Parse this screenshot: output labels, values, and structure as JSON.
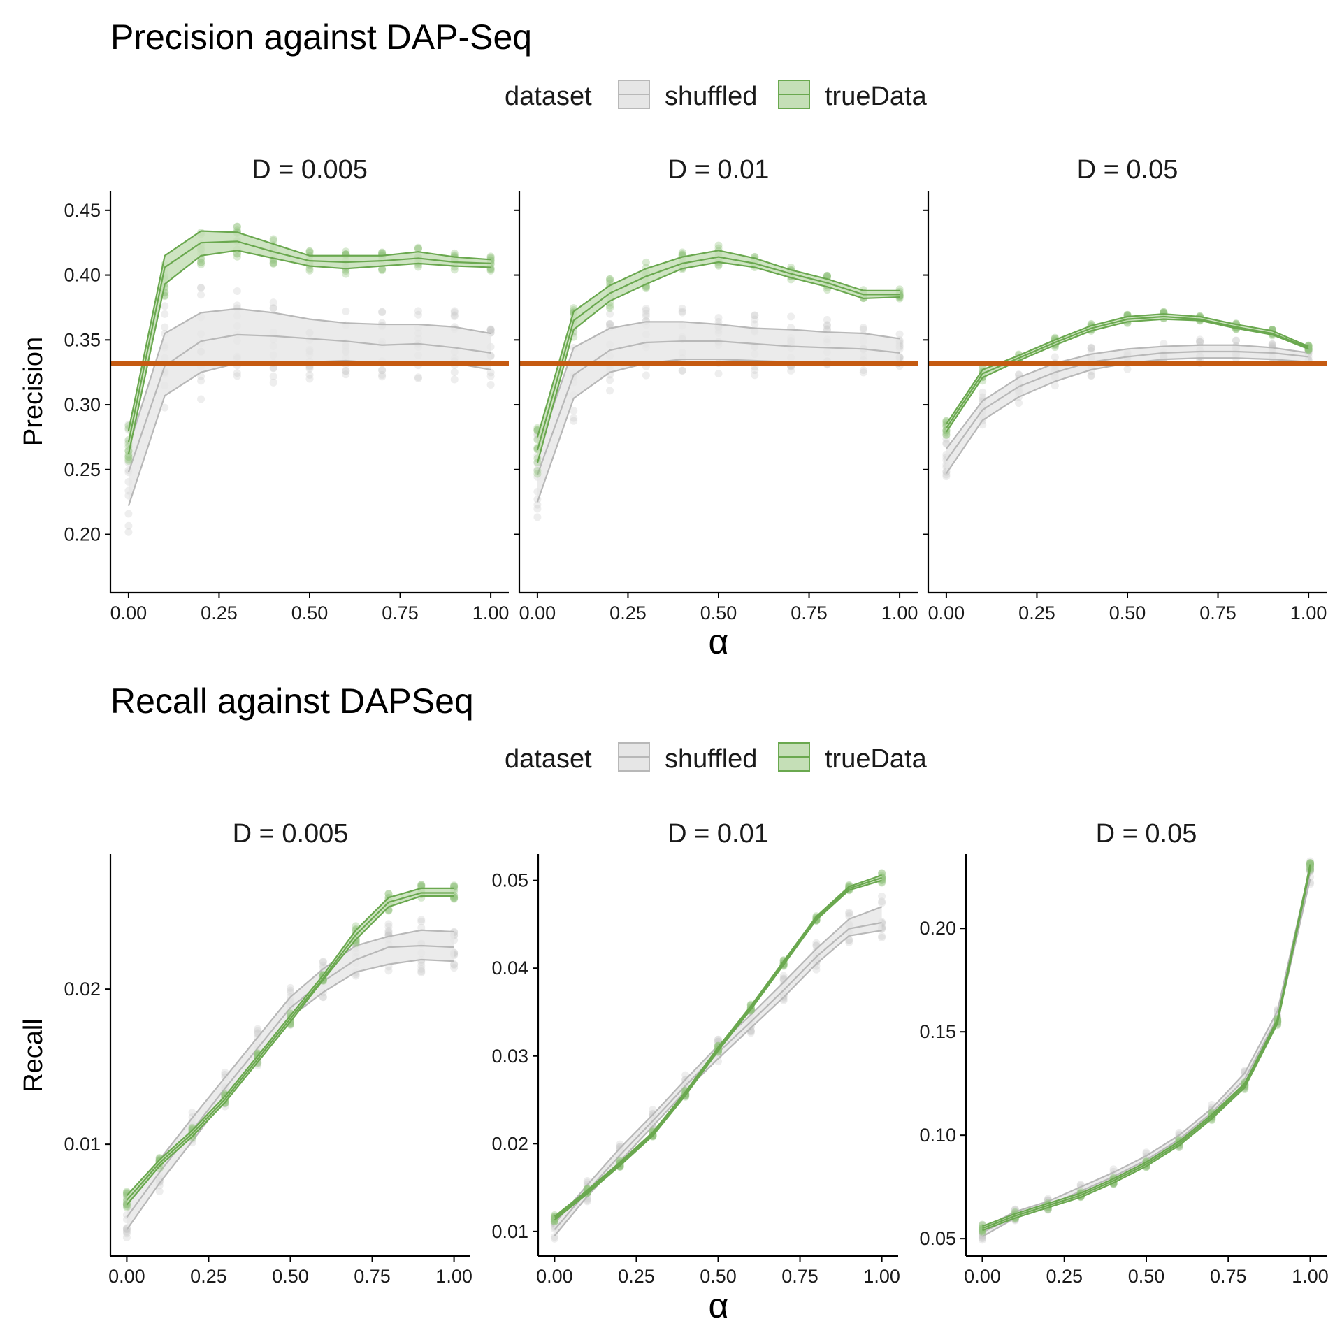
{
  "colors": {
    "shuffled_line": "#b8b8b8",
    "shuffled_fill": "#e6e6e6",
    "shuffled_point": "#c8c8c8",
    "true_line": "#6aa84f",
    "true_fill": "#c5dfb7",
    "true_point": "#93c47d",
    "reference_line": "#c55a11",
    "axis": "#000000"
  },
  "legend_title": "dataset",
  "x_axis_label": "α",
  "chart_data": [
    {
      "type": "line",
      "title": "Precision against DAP-Seq",
      "ylabel": "Precision",
      "xlabel": "α",
      "x": [
        0,
        0.1,
        0.2,
        0.3,
        0.4,
        0.5,
        0.6,
        0.7,
        0.8,
        0.9,
        1.0
      ],
      "xlim": [
        -0.05,
        1.05
      ],
      "ylim": [
        0.155,
        0.465
      ],
      "xticks": [
        "0.00",
        "0.25",
        "0.50",
        "0.75",
        "1.00"
      ],
      "yticks": [
        "0.20",
        "0.25",
        "0.30",
        "0.35",
        "0.40",
        "0.45"
      ],
      "reference_line": 0.332,
      "legend": {
        "title": "dataset",
        "position": "top",
        "entries": [
          "shuffled",
          "trueData"
        ]
      },
      "panels": [
        {
          "label": "D = 0.005",
          "series": [
            {
              "name": "shuffled",
              "values": [
                0.248,
                0.33,
                0.349,
                0.354,
                0.353,
                0.351,
                0.349,
                0.346,
                0.347,
                0.344,
                0.34
              ],
              "lower": [
                0.222,
                0.307,
                0.325,
                0.332,
                0.333,
                0.333,
                0.334,
                0.332,
                0.332,
                0.332,
                0.327
              ],
              "upper": [
                0.267,
                0.355,
                0.371,
                0.374,
                0.371,
                0.366,
                0.363,
                0.362,
                0.362,
                0.36,
                0.355
              ]
            },
            {
              "name": "trueData",
              "values": [
                0.271,
                0.406,
                0.425,
                0.426,
                0.418,
                0.411,
                0.41,
                0.411,
                0.413,
                0.41,
                0.409
              ],
              "lower": [
                0.262,
                0.393,
                0.415,
                0.419,
                0.413,
                0.407,
                0.405,
                0.407,
                0.409,
                0.407,
                0.406
              ],
              "upper": [
                0.28,
                0.415,
                0.434,
                0.433,
                0.424,
                0.415,
                0.415,
                0.415,
                0.418,
                0.414,
                0.412
              ]
            }
          ]
        },
        {
          "label": "D = 0.01",
          "series": [
            {
              "name": "shuffled",
              "values": [
                0.246,
                0.323,
                0.342,
                0.348,
                0.349,
                0.349,
                0.347,
                0.345,
                0.344,
                0.343,
                0.34
              ],
              "lower": [
                0.225,
                0.305,
                0.325,
                0.332,
                0.335,
                0.335,
                0.334,
                0.333,
                0.332,
                0.332,
                0.33
              ],
              "upper": [
                0.264,
                0.344,
                0.359,
                0.364,
                0.364,
                0.362,
                0.359,
                0.358,
                0.356,
                0.355,
                0.351
              ]
            },
            {
              "name": "trueData",
              "values": [
                0.265,
                0.365,
                0.386,
                0.399,
                0.409,
                0.414,
                0.409,
                0.401,
                0.394,
                0.385,
                0.385
              ],
              "lower": [
                0.255,
                0.358,
                0.38,
                0.393,
                0.405,
                0.41,
                0.406,
                0.398,
                0.391,
                0.382,
                0.383
              ],
              "upper": [
                0.275,
                0.372,
                0.392,
                0.405,
                0.414,
                0.419,
                0.413,
                0.404,
                0.397,
                0.388,
                0.388
              ]
            }
          ]
        },
        {
          "label": "D = 0.05",
          "series": [
            {
              "name": "shuffled",
              "values": [
                0.257,
                0.296,
                0.314,
                0.325,
                0.333,
                0.337,
                0.34,
                0.341,
                0.341,
                0.34,
                0.337
              ],
              "lower": [
                0.247,
                0.288,
                0.306,
                0.318,
                0.327,
                0.332,
                0.335,
                0.336,
                0.336,
                0.335,
                0.333
              ],
              "upper": [
                0.266,
                0.303,
                0.321,
                0.332,
                0.339,
                0.343,
                0.345,
                0.346,
                0.346,
                0.344,
                0.34
              ]
            },
            {
              "name": "trueData",
              "values": [
                0.282,
                0.324,
                0.336,
                0.348,
                0.359,
                0.366,
                0.368,
                0.366,
                0.36,
                0.355,
                0.344
              ],
              "lower": [
                0.279,
                0.321,
                0.334,
                0.346,
                0.357,
                0.364,
                0.366,
                0.365,
                0.359,
                0.354,
                0.343
              ],
              "upper": [
                0.285,
                0.327,
                0.338,
                0.35,
                0.361,
                0.368,
                0.37,
                0.368,
                0.362,
                0.357,
                0.345
              ]
            }
          ]
        }
      ]
    },
    {
      "type": "line",
      "title": "Recall against DAPSeq",
      "ylabel": "Recall",
      "xlabel": "α",
      "x": [
        0,
        0.1,
        0.2,
        0.3,
        0.4,
        0.5,
        0.6,
        0.7,
        0.8,
        0.9,
        1.0
      ],
      "xlim": [
        -0.05,
        1.05
      ],
      "xticks": [
        "0.00",
        "0.25",
        "0.50",
        "0.75",
        "1.00"
      ],
      "legend": {
        "title": "dataset",
        "position": "top",
        "entries": [
          "shuffled",
          "trueData"
        ]
      },
      "panels": [
        {
          "label": "D = 0.005",
          "ylim": [
            0.0028,
            0.0287
          ],
          "yticks": [
            "0.01",
            "0.02"
          ],
          "series": [
            {
              "name": "shuffled",
              "values": [
                0.0053,
                0.0082,
                0.0109,
                0.0136,
                0.0162,
                0.0188,
                0.0205,
                0.0219,
                0.0227,
                0.0228,
                0.0227
              ],
              "lower": [
                0.0045,
                0.0075,
                0.0102,
                0.013,
                0.0156,
                0.0182,
                0.0198,
                0.0211,
                0.0216,
                0.0219,
                0.0218
              ],
              "upper": [
                0.0061,
                0.009,
                0.0117,
                0.0143,
                0.0169,
                0.0195,
                0.0213,
                0.0228,
                0.0234,
                0.0238,
                0.0237
              ]
            },
            {
              "name": "trueData",
              "values": [
                0.0064,
                0.0088,
                0.0107,
                0.0129,
                0.0155,
                0.0181,
                0.0207,
                0.0235,
                0.0256,
                0.0262,
                0.0262
              ],
              "lower": [
                0.0061,
                0.0086,
                0.0105,
                0.0127,
                0.0153,
                0.0179,
                0.0206,
                0.0232,
                0.0253,
                0.026,
                0.026
              ],
              "upper": [
                0.0067,
                0.009,
                0.0109,
                0.0131,
                0.0157,
                0.0183,
                0.0209,
                0.0238,
                0.0259,
                0.0265,
                0.0265
              ]
            }
          ]
        },
        {
          "label": "D = 0.01",
          "ylim": [
            0.0072,
            0.053
          ],
          "yticks": [
            "0.01",
            "0.02",
            "0.03",
            "0.04",
            "0.05"
          ],
          "series": [
            {
              "name": "shuffled",
              "values": [
                0.0102,
                0.0146,
                0.0187,
                0.0226,
                0.0266,
                0.0304,
                0.0339,
                0.0375,
                0.0413,
                0.0445,
                0.0452
              ],
              "lower": [
                0.0095,
                0.014,
                0.018,
                0.022,
                0.026,
                0.0297,
                0.0332,
                0.0367,
                0.0405,
                0.0437,
                0.0443
              ],
              "upper": [
                0.0109,
                0.0153,
                0.0195,
                0.0233,
                0.0273,
                0.0312,
                0.0347,
                0.0384,
                0.0422,
                0.0456,
                0.047
              ]
            },
            {
              "name": "trueData",
              "values": [
                0.0115,
                0.0145,
                0.0177,
                0.0211,
                0.0257,
                0.0308,
                0.0355,
                0.0406,
                0.0457,
                0.0491,
                0.0503
              ],
              "lower": [
                0.0113,
                0.0143,
                0.0175,
                0.0209,
                0.0255,
                0.0306,
                0.0353,
                0.0404,
                0.0455,
                0.0489,
                0.05
              ],
              "upper": [
                0.0117,
                0.0147,
                0.0179,
                0.0213,
                0.0259,
                0.031,
                0.0357,
                0.0408,
                0.0459,
                0.0493,
                0.0506
              ]
            }
          ]
        },
        {
          "label": "D = 0.05",
          "ylim": [
            0.0416,
            0.2359
          ],
          "yticks": [
            "0.05",
            "0.10",
            "0.15",
            "0.20"
          ],
          "series": [
            {
              "name": "shuffled",
              "values": [
                0.053,
                0.061,
                0.066,
                0.073,
                0.08,
                0.088,
                0.098,
                0.111,
                0.127,
                0.157,
                0.227
              ],
              "lower": [
                0.051,
                0.06,
                0.065,
                0.071,
                0.078,
                0.086,
                0.096,
                0.109,
                0.125,
                0.155,
                0.224
              ],
              "upper": [
                0.055,
                0.063,
                0.068,
                0.075,
                0.082,
                0.09,
                0.1,
                0.113,
                0.13,
                0.16,
                0.23
              ]
            },
            {
              "name": "trueData",
              "values": [
                0.055,
                0.061,
                0.066,
                0.071,
                0.078,
                0.086,
                0.096,
                0.109,
                0.124,
                0.155,
                0.23
              ],
              "lower": [
                0.054,
                0.06,
                0.065,
                0.07,
                0.077,
                0.085,
                0.095,
                0.108,
                0.123,
                0.154,
                0.229
              ],
              "upper": [
                0.056,
                0.062,
                0.067,
                0.072,
                0.079,
                0.087,
                0.097,
                0.11,
                0.125,
                0.156,
                0.231
              ]
            }
          ]
        }
      ]
    }
  ]
}
